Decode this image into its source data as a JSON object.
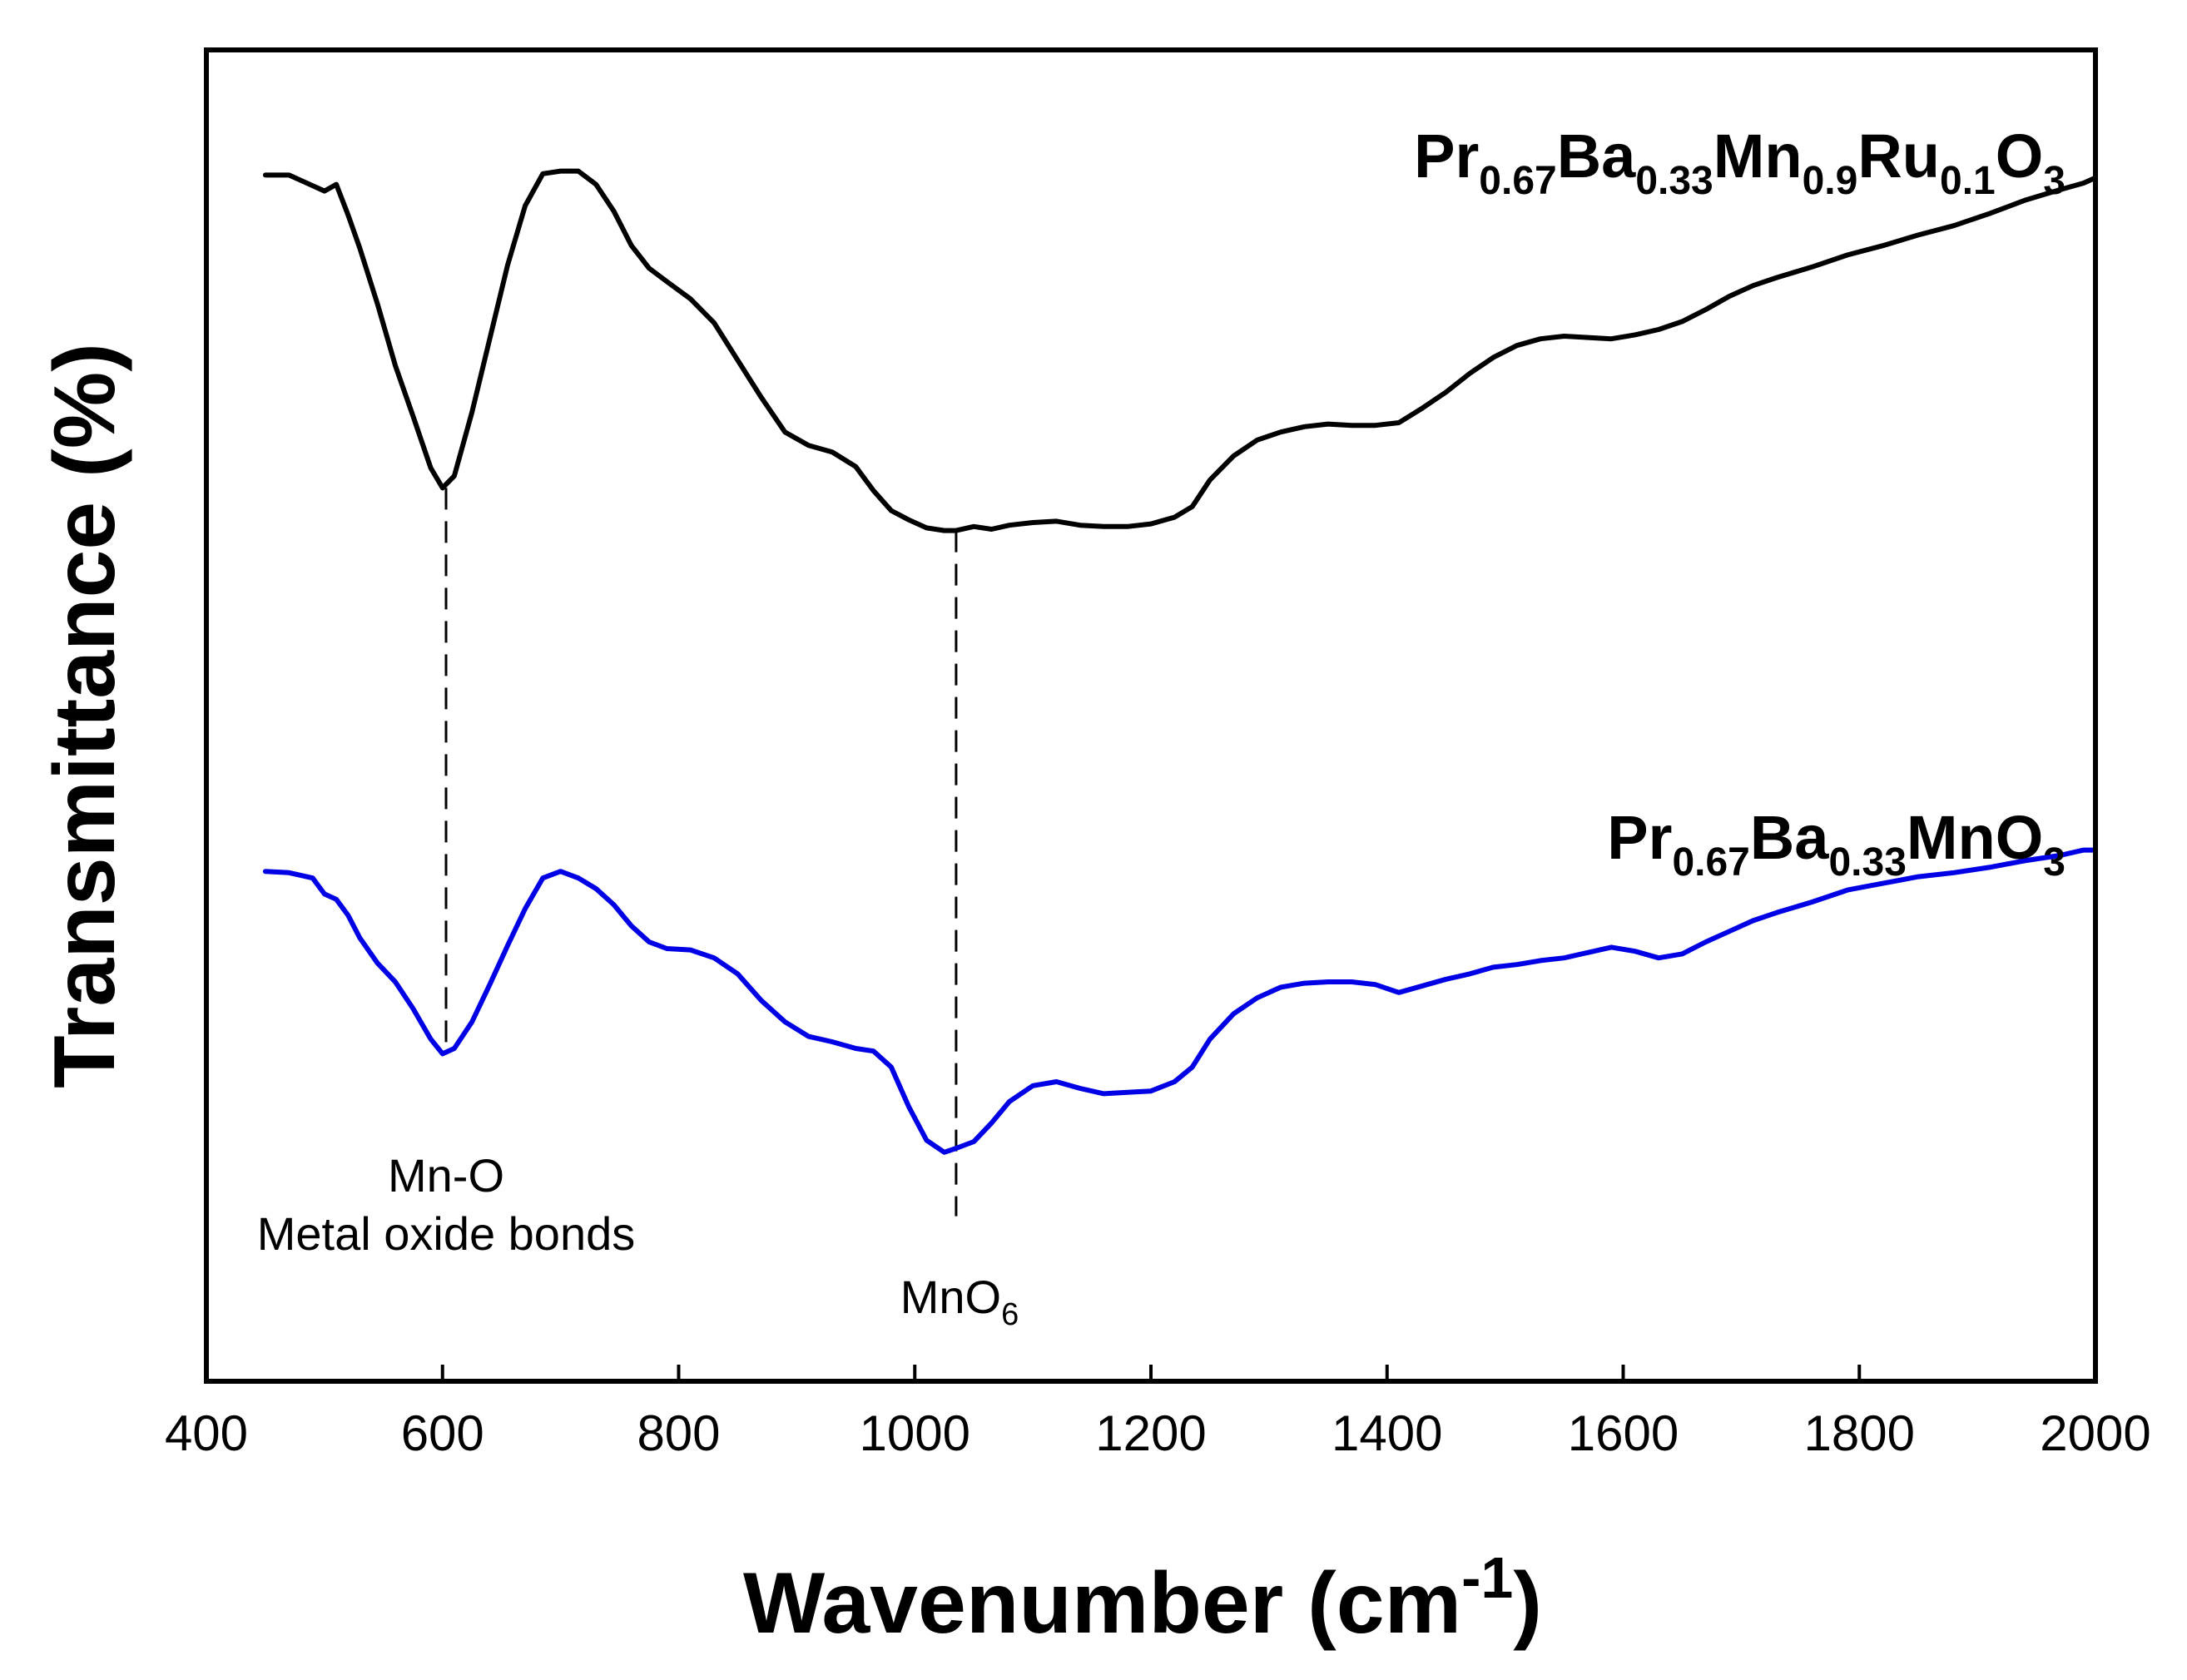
{
  "chart_data": {
    "type": "line",
    "title": "",
    "xlabel": "Wavenumber (cm",
    "xlabel_sup": "-1",
    "xlabel_close": ")",
    "ylabel": "Transmittance (%)",
    "xlim": [
      400,
      2000
    ],
    "ylim": [
      0,
      100
    ],
    "x_ticks": [
      400,
      600,
      800,
      1000,
      1200,
      1400,
      1600,
      1800,
      2000
    ],
    "x_tick_labels": [
      "400",
      "600",
      "800",
      "1000",
      "1200",
      "1400",
      "1600",
      "1800",
      "2000"
    ],
    "y_ticks_shown": false,
    "grid": false,
    "series": [
      {
        "name": "Pr0.67Ba0.33Mn0.9Ru0.1O3",
        "label_parts": [
          {
            "t": "Pr",
            "sub": false
          },
          {
            "t": "0.67",
            "sub": true
          },
          {
            "t": "Ba",
            "sub": false
          },
          {
            "t": "0.33",
            "sub": true
          },
          {
            "t": "Mn",
            "sub": false
          },
          {
            "t": "0.9",
            "sub": true
          },
          {
            "t": "Ru",
            "sub": false
          },
          {
            "t": "0.1",
            "sub": true
          },
          {
            "t": "O",
            "sub": false
          },
          {
            "t": "3",
            "sub": true
          }
        ],
        "color": "#000000",
        "x": [
          450,
          470,
          490,
          500,
          510,
          520,
          530,
          545,
          560,
          575,
          590,
          600,
          610,
          625,
          640,
          655,
          670,
          685,
          700,
          715,
          730,
          745,
          760,
          775,
          790,
          810,
          830,
          850,
          870,
          890,
          910,
          930,
          950,
          965,
          980,
          995,
          1010,
          1025,
          1035,
          1050,
          1065,
          1080,
          1100,
          1120,
          1140,
          1160,
          1180,
          1200,
          1220,
          1235,
          1250,
          1270,
          1290,
          1310,
          1330,
          1350,
          1370,
          1390,
          1410,
          1430,
          1450,
          1470,
          1490,
          1510,
          1530,
          1550,
          1570,
          1590,
          1610,
          1630,
          1650,
          1670,
          1690,
          1710,
          1730,
          1760,
          1790,
          1820,
          1850,
          1880,
          1910,
          1940,
          1970,
          1990,
          2000
        ],
        "y": [
          90.6,
          90.6,
          89.8,
          89.4,
          89.9,
          87.6,
          85.1,
          80.9,
          76.3,
          72.5,
          68.6,
          67.1,
          68.0,
          72.8,
          78.3,
          83.8,
          88.3,
          90.7,
          90.9,
          90.9,
          89.9,
          87.9,
          85.3,
          83.6,
          82.6,
          81.3,
          79.5,
          76.7,
          73.9,
          71.3,
          70.3,
          69.8,
          68.7,
          66.9,
          65.4,
          64.7,
          64.1,
          63.9,
          63.9,
          64.2,
          64.0,
          64.3,
          64.5,
          64.6,
          64.3,
          64.2,
          64.2,
          64.4,
          64.9,
          65.7,
          67.7,
          69.5,
          70.7,
          71.3,
          71.7,
          71.9,
          71.8,
          71.8,
          72.0,
          73.1,
          74.3,
          75.7,
          76.9,
          77.8,
          78.3,
          78.5,
          78.4,
          78.3,
          78.6,
          79.0,
          79.6,
          80.5,
          81.5,
          82.3,
          82.9,
          83.7,
          84.6,
          85.3,
          86.1,
          86.8,
          87.7,
          88.7,
          89.5,
          90.0,
          90.4
        ]
      },
      {
        "name": "Pr0.67Ba0.33MnO3",
        "label_parts": [
          {
            "t": "Pr",
            "sub": false
          },
          {
            "t": "0.67",
            "sub": true
          },
          {
            "t": "Ba",
            "sub": false
          },
          {
            "t": "0.33",
            "sub": true
          },
          {
            "t": "MnO",
            "sub": false
          },
          {
            "t": "3",
            "sub": true
          }
        ],
        "color": "#0000e6",
        "x": [
          450,
          470,
          490,
          500,
          510,
          520,
          530,
          545,
          560,
          575,
          590,
          600,
          610,
          625,
          640,
          655,
          670,
          685,
          700,
          715,
          730,
          745,
          760,
          775,
          790,
          810,
          830,
          850,
          870,
          890,
          910,
          930,
          950,
          965,
          980,
          995,
          1010,
          1025,
          1035,
          1050,
          1065,
          1080,
          1100,
          1120,
          1140,
          1160,
          1180,
          1200,
          1220,
          1235,
          1250,
          1270,
          1290,
          1310,
          1330,
          1350,
          1370,
          1390,
          1410,
          1430,
          1450,
          1470,
          1490,
          1510,
          1530,
          1550,
          1570,
          1590,
          1610,
          1630,
          1650,
          1670,
          1690,
          1710,
          1730,
          1760,
          1790,
          1820,
          1850,
          1880,
          1910,
          1940,
          1970,
          1990,
          2000
        ],
        "y": [
          38.3,
          38.2,
          37.8,
          36.6,
          36.2,
          35.0,
          33.3,
          31.4,
          30.0,
          28.0,
          25.7,
          24.6,
          25.0,
          27.0,
          29.8,
          32.7,
          35.5,
          37.8,
          38.3,
          37.8,
          37.0,
          35.8,
          34.2,
          33.0,
          32.5,
          32.4,
          31.8,
          30.6,
          28.6,
          27.0,
          25.9,
          25.5,
          25.0,
          24.8,
          23.6,
          20.6,
          18.1,
          17.2,
          17.5,
          18.0,
          19.4,
          21.0,
          22.2,
          22.5,
          22.0,
          21.6,
          21.7,
          21.8,
          22.5,
          23.6,
          25.7,
          27.6,
          28.8,
          29.6,
          29.9,
          30.0,
          30.0,
          29.8,
          29.2,
          29.7,
          30.2,
          30.6,
          31.1,
          31.3,
          31.6,
          31.8,
          32.2,
          32.6,
          32.3,
          31.8,
          32.1,
          33.0,
          33.8,
          34.6,
          35.2,
          36.0,
          36.9,
          37.4,
          37.9,
          38.2,
          38.6,
          39.1,
          39.5,
          39.9,
          39.9
        ]
      }
    ],
    "annotations": [
      {
        "name": "mn-o-annotation",
        "lines": [
          "Mn-O",
          "Metal oxide bonds"
        ],
        "x": 603
      },
      {
        "name": "mno6-annotation",
        "main": "MnO",
        "sub": "6",
        "x": 1035
      }
    ],
    "reference_lines": [
      {
        "x": 603,
        "y_from": 67.1,
        "y_to": 24.6,
        "style": "dashed"
      },
      {
        "x": 1035,
        "y_from": 63.9,
        "y_to": 12.4,
        "style": "dashed"
      }
    ]
  }
}
